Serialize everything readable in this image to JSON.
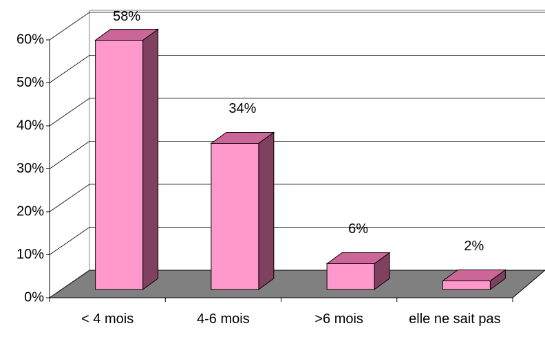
{
  "chart_data": {
    "type": "bar3d",
    "categories": [
      "< 4 mois",
      "4-6 mois",
      ">6 mois",
      "elle ne sait pas"
    ],
    "values": [
      58,
      34,
      6,
      2
    ],
    "value_labels": [
      "58%",
      "34%",
      "6%",
      "2%"
    ],
    "color": "#ff99cc",
    "ylim": [
      0,
      60
    ],
    "yticks": [
      {
        "value": 0,
        "label": "0%"
      },
      {
        "value": 10,
        "label": "10%"
      },
      {
        "value": 20,
        "label": "20%"
      },
      {
        "value": 30,
        "label": "30%"
      },
      {
        "value": 40,
        "label": "40%"
      },
      {
        "value": 50,
        "label": "50%"
      },
      {
        "value": 60,
        "label": "60%"
      }
    ],
    "grid": true
  }
}
